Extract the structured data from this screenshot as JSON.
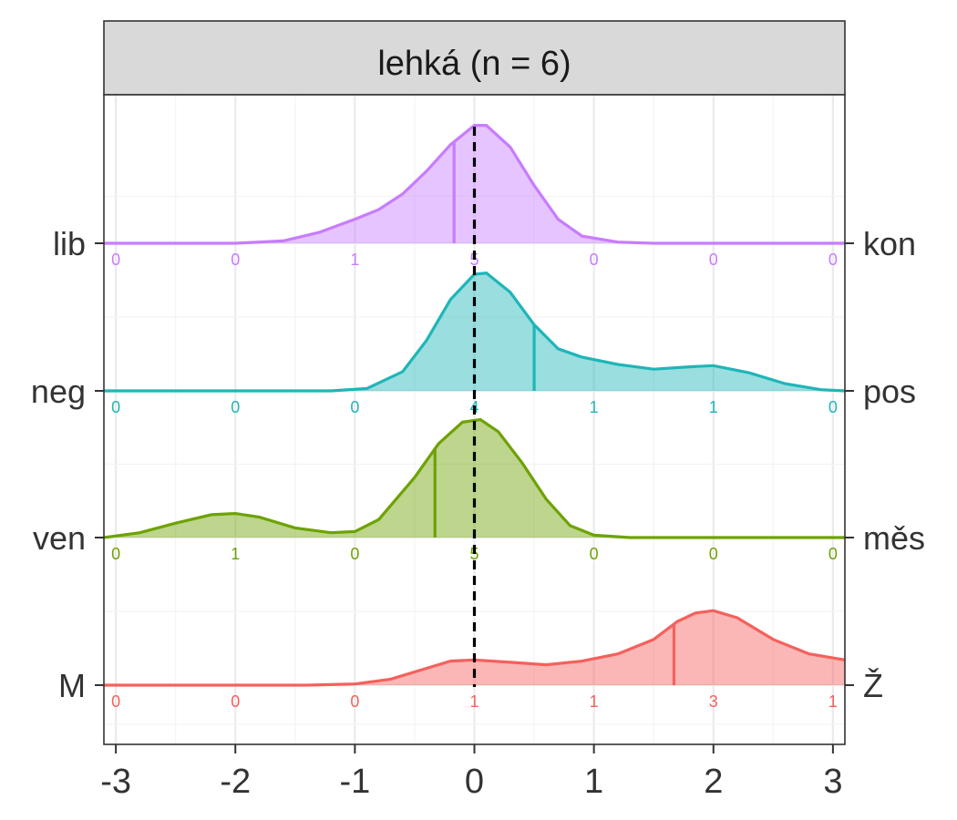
{
  "chart_data": {
    "type": "ridgeline-density",
    "title": "lehká (n = 6)",
    "xlabel": "",
    "ylabel": "",
    "xlim": [
      -3.1,
      3.1
    ],
    "x_ticks": [
      -3,
      -2,
      -1,
      0,
      1,
      2,
      3
    ],
    "x_tick_labels": [
      "-3",
      "-2",
      "-1",
      "0",
      "1",
      "2",
      "3"
    ],
    "count_positions": [
      -3,
      -2,
      -1,
      0,
      1,
      2,
      3
    ],
    "reference_line_x": 0,
    "grid": true,
    "ridges": [
      {
        "left_label": "lib",
        "right_label": "kon",
        "color": "#C77CFF",
        "mean": -0.17,
        "counts": [
          "0",
          "0",
          "1",
          "5",
          "0",
          "0",
          "0"
        ],
        "density": [
          [
            -3.1,
            0
          ],
          [
            -2,
            0
          ],
          [
            -1.6,
            0.02
          ],
          [
            -1.3,
            0.09
          ],
          [
            -1.0,
            0.2
          ],
          [
            -0.8,
            0.28
          ],
          [
            -0.6,
            0.41
          ],
          [
            -0.4,
            0.6
          ],
          [
            -0.2,
            0.82
          ],
          [
            0,
            0.98
          ],
          [
            0.1,
            0.98
          ],
          [
            0.3,
            0.8
          ],
          [
            0.5,
            0.48
          ],
          [
            0.7,
            0.2
          ],
          [
            0.9,
            0.06
          ],
          [
            1.2,
            0.01
          ],
          [
            1.5,
            0
          ],
          [
            3.1,
            0
          ]
        ]
      },
      {
        "left_label": "neg",
        "right_label": "pos",
        "color": "#1FB5B8",
        "mean": 0.5,
        "counts": [
          "0",
          "0",
          "0",
          "4",
          "1",
          "1",
          "0"
        ],
        "density": [
          [
            -3.1,
            0
          ],
          [
            -1.2,
            0
          ],
          [
            -0.9,
            0.02
          ],
          [
            -0.6,
            0.16
          ],
          [
            -0.4,
            0.42
          ],
          [
            -0.2,
            0.76
          ],
          [
            0,
            0.97
          ],
          [
            0.1,
            0.98
          ],
          [
            0.3,
            0.82
          ],
          [
            0.5,
            0.55
          ],
          [
            0.7,
            0.35
          ],
          [
            0.9,
            0.28
          ],
          [
            1.2,
            0.22
          ],
          [
            1.5,
            0.18
          ],
          [
            1.8,
            0.2
          ],
          [
            2.0,
            0.21
          ],
          [
            2.3,
            0.15
          ],
          [
            2.6,
            0.06
          ],
          [
            2.9,
            0.01
          ],
          [
            3.1,
            0
          ]
        ]
      },
      {
        "left_label": "ven",
        "right_label": "měs",
        "color": "#6DA203",
        "mean": -0.33,
        "counts": [
          "0",
          "1",
          "0",
          "5",
          "0",
          "0",
          "0"
        ],
        "density": [
          [
            -3.1,
            0
          ],
          [
            -2.8,
            0.04
          ],
          [
            -2.5,
            0.12
          ],
          [
            -2.2,
            0.19
          ],
          [
            -2.0,
            0.2
          ],
          [
            -1.8,
            0.17
          ],
          [
            -1.5,
            0.08
          ],
          [
            -1.2,
            0.04
          ],
          [
            -1.0,
            0.05
          ],
          [
            -0.8,
            0.15
          ],
          [
            -0.5,
            0.5
          ],
          [
            -0.3,
            0.78
          ],
          [
            -0.1,
            0.96
          ],
          [
            0.05,
            0.98
          ],
          [
            0.2,
            0.88
          ],
          [
            0.4,
            0.62
          ],
          [
            0.6,
            0.32
          ],
          [
            0.8,
            0.1
          ],
          [
            1.0,
            0.02
          ],
          [
            1.3,
            0
          ],
          [
            3.1,
            0
          ]
        ]
      },
      {
        "left_label": "M",
        "right_label": "Ž",
        "color": "#F5605C",
        "mean": 1.67,
        "counts": [
          "0",
          "0",
          "0",
          "1",
          "1",
          "3",
          "1"
        ],
        "density": [
          [
            -3.1,
            0
          ],
          [
            -1.4,
            0
          ],
          [
            -1.0,
            0.01
          ],
          [
            -0.7,
            0.05
          ],
          [
            -0.4,
            0.14
          ],
          [
            -0.2,
            0.2
          ],
          [
            0,
            0.21
          ],
          [
            0.3,
            0.19
          ],
          [
            0.6,
            0.17
          ],
          [
            0.9,
            0.2
          ],
          [
            1.2,
            0.26
          ],
          [
            1.5,
            0.38
          ],
          [
            1.7,
            0.53
          ],
          [
            1.85,
            0.6
          ],
          [
            2.0,
            0.62
          ],
          [
            2.2,
            0.56
          ],
          [
            2.5,
            0.38
          ],
          [
            2.8,
            0.26
          ],
          [
            3.1,
            0.21
          ]
        ]
      }
    ]
  }
}
